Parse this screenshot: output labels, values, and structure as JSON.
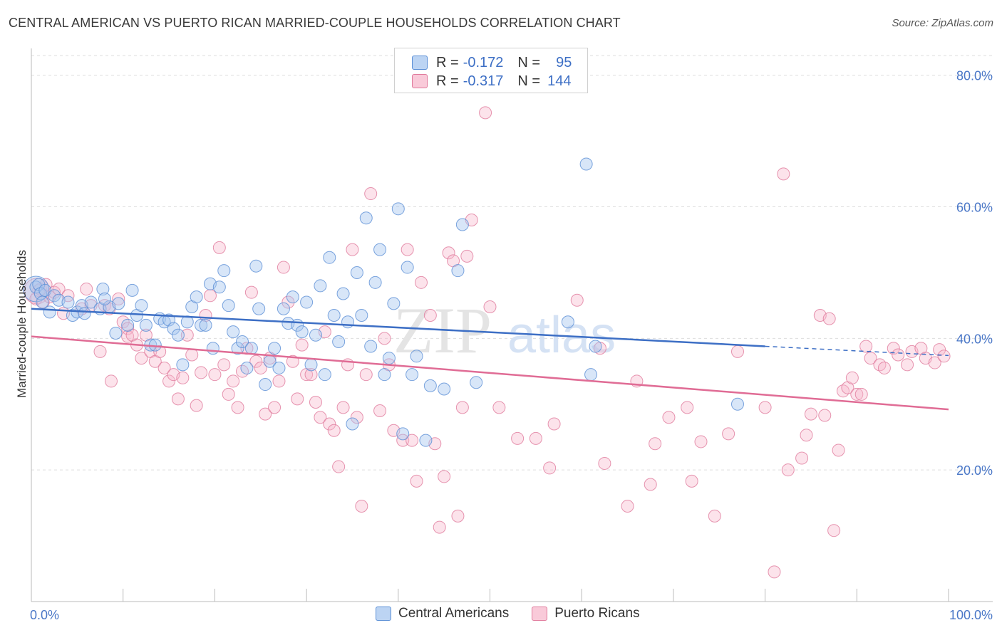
{
  "title": "CENTRAL AMERICAN VS PUERTO RICAN MARRIED-COUPLE HOUSEHOLDS CORRELATION CHART",
  "source": "Source: ZipAtlas.com",
  "watermark": {
    "zip": "ZIP",
    "atlas": "atlas"
  },
  "legend": {
    "r_label": "R =",
    "n_label": "N =",
    "series": [
      {
        "name": "Central Americans",
        "r": "-0.172",
        "n": "95",
        "fill": "#a9c8f0",
        "stroke": "#5b8fd6"
      },
      {
        "name": "Puerto Ricans",
        "r": "-0.317",
        "n": "144",
        "fill": "#f7b9cc",
        "stroke": "#e07a9c"
      }
    ]
  },
  "chart_data": {
    "type": "scatter",
    "title": "CENTRAL AMERICAN VS PUERTO RICAN MARRIED-COUPLE HOUSEHOLDS CORRELATION CHART",
    "xlabel": "",
    "ylabel": "Married-couple Households",
    "xlim": [
      0,
      100
    ],
    "ylim": [
      0,
      83
    ],
    "x_tick_labels": [
      "0.0%",
      "100.0%"
    ],
    "y_ticks": [
      20,
      40,
      60,
      80
    ],
    "y_tick_labels": [
      "20.0%",
      "40.0%",
      "60.0%",
      "80.0%"
    ],
    "grid": true,
    "legend_position": "top-center",
    "colors": {
      "blue": "#3d6fc5",
      "pink": "#e06c95",
      "grid": "#dddddd",
      "axis": "#bbbbbb"
    },
    "trendlines": [
      {
        "series": "Central Americans",
        "x0": 0,
        "y0": 44.5,
        "x1": 80,
        "y1": 38.8,
        "dash_to_x": 100,
        "dash_to_y": 37.4
      },
      {
        "series": "Puerto Ricans",
        "x0": 0,
        "y0": 40.3,
        "x1": 100,
        "y1": 29.2
      }
    ],
    "series": [
      {
        "name": "Central Americans",
        "points": [
          [
            0.5,
            47.8
          ],
          [
            0.8,
            48.2
          ],
          [
            1.0,
            46.8
          ],
          [
            1.2,
            45.5
          ],
          [
            1.5,
            47.3
          ],
          [
            2.0,
            44.0
          ],
          [
            2.5,
            46.5
          ],
          [
            3.0,
            45.8
          ],
          [
            4.0,
            45.5
          ],
          [
            4.5,
            43.5
          ],
          [
            5.0,
            44.0
          ],
          [
            5.5,
            45.0
          ],
          [
            6.5,
            45.5
          ],
          [
            7.5,
            44.5
          ],
          [
            7.8,
            47.5
          ],
          [
            8.5,
            44.8
          ],
          [
            9.5,
            45.3
          ],
          [
            9.2,
            40.8
          ],
          [
            10.5,
            42.0
          ],
          [
            11.0,
            47.3
          ],
          [
            11.5,
            43.5
          ],
          [
            12.0,
            45.0
          ],
          [
            12.5,
            42.0
          ],
          [
            13.0,
            39.0
          ],
          [
            14.0,
            43.0
          ],
          [
            14.5,
            42.5
          ],
          [
            15.0,
            42.8
          ],
          [
            15.5,
            41.5
          ],
          [
            16.0,
            40.5
          ],
          [
            16.5,
            36.0
          ],
          [
            17.0,
            42.5
          ],
          [
            17.5,
            44.8
          ],
          [
            18.0,
            46.3
          ],
          [
            18.5,
            42.0
          ],
          [
            19.0,
            42.0
          ],
          [
            19.5,
            48.3
          ],
          [
            19.8,
            38.5
          ],
          [
            20.5,
            47.8
          ],
          [
            21.0,
            50.3
          ],
          [
            21.5,
            45.0
          ],
          [
            22.0,
            41.0
          ],
          [
            22.5,
            38.5
          ],
          [
            23.0,
            39.5
          ],
          [
            23.5,
            35.5
          ],
          [
            24.0,
            38.5
          ],
          [
            24.5,
            51.0
          ],
          [
            24.8,
            44.5
          ],
          [
            25.5,
            33.0
          ],
          [
            26.0,
            36.5
          ],
          [
            26.5,
            38.5
          ],
          [
            27.0,
            35.5
          ],
          [
            27.5,
            44.5
          ],
          [
            28.0,
            42.3
          ],
          [
            28.5,
            46.3
          ],
          [
            29.0,
            42.0
          ],
          [
            29.5,
            41.0
          ],
          [
            30.0,
            45.5
          ],
          [
            30.5,
            36.0
          ],
          [
            31.0,
            40.5
          ],
          [
            31.5,
            48.0
          ],
          [
            32.0,
            34.5
          ],
          [
            32.5,
            52.3
          ],
          [
            33.0,
            43.5
          ],
          [
            33.5,
            39.5
          ],
          [
            34.0,
            46.8
          ],
          [
            34.5,
            42.5
          ],
          [
            35.0,
            27.0
          ],
          [
            35.5,
            50.0
          ],
          [
            36.0,
            43.5
          ],
          [
            36.5,
            58.3
          ],
          [
            37.0,
            38.8
          ],
          [
            37.5,
            48.5
          ],
          [
            38.0,
            53.5
          ],
          [
            38.5,
            34.5
          ],
          [
            39.0,
            37.0
          ],
          [
            39.5,
            45.3
          ],
          [
            40.0,
            59.7
          ],
          [
            40.5,
            25.5
          ],
          [
            41.0,
            50.8
          ],
          [
            41.5,
            34.5
          ],
          [
            42.0,
            37.3
          ],
          [
            43.0,
            24.5
          ],
          [
            43.5,
            32.8
          ],
          [
            45.0,
            32.3
          ],
          [
            46.5,
            50.3
          ],
          [
            47.0,
            57.3
          ],
          [
            48.5,
            33.3
          ],
          [
            58.5,
            42.5
          ],
          [
            60.5,
            66.5
          ],
          [
            61.0,
            34.5
          ],
          [
            61.5,
            38.8
          ],
          [
            77.0,
            30.0
          ],
          [
            5.8,
            43.8
          ],
          [
            8.0,
            46.0
          ],
          [
            13.5,
            39.0
          ]
        ],
        "large_points": [
          [
            0.5,
            47.5
          ]
        ]
      },
      {
        "name": "Puerto Ricans",
        "points": [
          [
            0.5,
            46.0
          ],
          [
            0.8,
            47.3
          ],
          [
            1.0,
            47.5
          ],
          [
            1.3,
            45.5
          ],
          [
            1.6,
            48.2
          ],
          [
            2.0,
            46.3
          ],
          [
            2.5,
            47.0
          ],
          [
            3.0,
            47.5
          ],
          [
            3.5,
            43.8
          ],
          [
            4.0,
            46.5
          ],
          [
            5.5,
            44.5
          ],
          [
            6.0,
            47.5
          ],
          [
            6.5,
            45.0
          ],
          [
            7.5,
            38.0
          ],
          [
            8.0,
            45.0
          ],
          [
            8.5,
            44.5
          ],
          [
            8.7,
            33.5
          ],
          [
            9.5,
            46.0
          ],
          [
            10.0,
            42.5
          ],
          [
            10.5,
            41.5
          ],
          [
            10.5,
            40.3
          ],
          [
            11.0,
            40.5
          ],
          [
            11.5,
            39.0
          ],
          [
            12.0,
            37.0
          ],
          [
            12.5,
            40.5
          ],
          [
            13.0,
            38.0
          ],
          [
            13.5,
            36.5
          ],
          [
            14.0,
            38.0
          ],
          [
            14.5,
            35.5
          ],
          [
            15.0,
            33.5
          ],
          [
            15.5,
            34.5
          ],
          [
            16.0,
            30.8
          ],
          [
            16.5,
            34.0
          ],
          [
            17.0,
            40.5
          ],
          [
            17.5,
            37.5
          ],
          [
            18.0,
            29.8
          ],
          [
            18.5,
            34.8
          ],
          [
            19.0,
            43.5
          ],
          [
            19.5,
            46.5
          ],
          [
            20.0,
            34.5
          ],
          [
            20.5,
            53.8
          ],
          [
            21.0,
            36.0
          ],
          [
            21.5,
            31.5
          ],
          [
            22.0,
            33.5
          ],
          [
            22.5,
            29.5
          ],
          [
            23.0,
            35.0
          ],
          [
            23.5,
            38.5
          ],
          [
            24.0,
            47.0
          ],
          [
            24.5,
            36.5
          ],
          [
            25.0,
            35.5
          ],
          [
            25.5,
            28.5
          ],
          [
            26.0,
            37.0
          ],
          [
            26.5,
            29.5
          ],
          [
            27.0,
            33.5
          ],
          [
            27.5,
            50.8
          ],
          [
            28.0,
            45.5
          ],
          [
            28.5,
            36.5
          ],
          [
            29.0,
            30.8
          ],
          [
            29.5,
            39.0
          ],
          [
            30.0,
            34.5
          ],
          [
            30.5,
            34.5
          ],
          [
            31.0,
            30.3
          ],
          [
            31.5,
            28.0
          ],
          [
            32.0,
            41.0
          ],
          [
            32.5,
            27.0
          ],
          [
            33.0,
            26.0
          ],
          [
            33.5,
            20.5
          ],
          [
            34.0,
            29.5
          ],
          [
            34.5,
            36.0
          ],
          [
            35.0,
            53.5
          ],
          [
            35.5,
            28.0
          ],
          [
            36.0,
            14.5
          ],
          [
            36.5,
            34.5
          ],
          [
            37.0,
            62.0
          ],
          [
            38.0,
            29.0
          ],
          [
            38.5,
            40.0
          ],
          [
            39.0,
            36.0
          ],
          [
            39.5,
            26.0
          ],
          [
            40.5,
            24.5
          ],
          [
            41.0,
            53.5
          ],
          [
            41.5,
            24.5
          ],
          [
            42.0,
            18.3
          ],
          [
            42.5,
            48.5
          ],
          [
            43.5,
            43.5
          ],
          [
            44.0,
            24.0
          ],
          [
            44.5,
            11.3
          ],
          [
            45.0,
            19.0
          ],
          [
            45.5,
            53.0
          ],
          [
            46.0,
            51.8
          ],
          [
            46.5,
            13.0
          ],
          [
            47.0,
            29.5
          ],
          [
            47.5,
            52.5
          ],
          [
            48.0,
            58.0
          ],
          [
            49.5,
            74.3
          ],
          [
            50.0,
            44.8
          ],
          [
            51.0,
            29.5
          ],
          [
            53.0,
            24.8
          ],
          [
            55.0,
            24.8
          ],
          [
            56.5,
            20.3
          ],
          [
            57.0,
            27.0
          ],
          [
            59.5,
            45.8
          ],
          [
            62.0,
            38.5
          ],
          [
            62.5,
            21.0
          ],
          [
            65.0,
            14.5
          ],
          [
            66.0,
            33.5
          ],
          [
            67.5,
            17.8
          ],
          [
            68.0,
            24.0
          ],
          [
            69.5,
            28.0
          ],
          [
            71.5,
            29.5
          ],
          [
            72.0,
            18.3
          ],
          [
            73.0,
            24.3
          ],
          [
            74.5,
            13.0
          ],
          [
            76.0,
            25.5
          ],
          [
            77.0,
            38.0
          ],
          [
            80.0,
            29.5
          ],
          [
            81.0,
            4.5
          ],
          [
            82.0,
            65.0
          ],
          [
            82.5,
            20.0
          ],
          [
            84.0,
            21.8
          ],
          [
            84.5,
            25.3
          ],
          [
            85.0,
            28.5
          ],
          [
            86.0,
            43.5
          ],
          [
            86.5,
            28.3
          ],
          [
            87.0,
            43.0
          ],
          [
            87.5,
            10.8
          ],
          [
            88.0,
            23.0
          ],
          [
            88.5,
            32.0
          ],
          [
            89.0,
            32.5
          ],
          [
            89.5,
            34.0
          ],
          [
            90.0,
            31.5
          ],
          [
            91.0,
            38.8
          ],
          [
            91.5,
            37.0
          ],
          [
            92.5,
            36.0
          ],
          [
            93.0,
            35.5
          ],
          [
            94.0,
            38.5
          ],
          [
            94.5,
            37.5
          ],
          [
            95.5,
            36.0
          ],
          [
            96.0,
            38.0
          ],
          [
            97.0,
            38.5
          ],
          [
            97.5,
            37.0
          ],
          [
            98.5,
            36.3
          ],
          [
            99.0,
            38.3
          ],
          [
            99.5,
            37.3
          ],
          [
            90.5,
            31.5
          ]
        ],
        "large_points": [
          [
            0.6,
            47.2
          ]
        ]
      }
    ]
  }
}
